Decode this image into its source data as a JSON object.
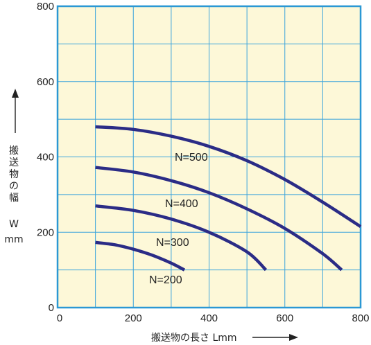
{
  "chart_data": {
    "type": "line",
    "xlabel": "搬送物の長さ Lmm",
    "ylabel": "搬送物の幅",
    "ylabel_unit_letter": "W",
    "ylabel_unit": "mm",
    "xlim": [
      0,
      800
    ],
    "ylim": [
      0,
      800
    ],
    "xticks": [
      "0",
      "200",
      "400",
      "600",
      "800"
    ],
    "yticks": [
      "0",
      "200",
      "400",
      "600",
      "800"
    ],
    "grid": true,
    "series": [
      {
        "name": "N=500",
        "x": [
          100,
          200,
          300,
          400,
          500,
          600,
          700,
          800
        ],
        "y": [
          480,
          473,
          455,
          428,
          390,
          340,
          280,
          215
        ]
      },
      {
        "name": "N=400",
        "x": [
          100,
          200,
          300,
          400,
          500,
          600,
          700,
          750
        ],
        "y": [
          372,
          360,
          337,
          305,
          262,
          210,
          143,
          100
        ]
      },
      {
        "name": "N=300",
        "x": [
          100,
          200,
          300,
          400,
          500,
          550
        ],
        "y": [
          270,
          258,
          235,
          200,
          148,
          100
        ]
      },
      {
        "name": "N=200",
        "x": [
          100,
          150,
          200,
          250,
          300,
          335
        ],
        "y": [
          173,
          167,
          155,
          139,
          118,
          100
        ]
      }
    ],
    "colors": {
      "background": "#fdf8d8",
      "grid": "#3aa3dc",
      "frame": "#2b98d4",
      "line": "#2b2c86"
    }
  }
}
